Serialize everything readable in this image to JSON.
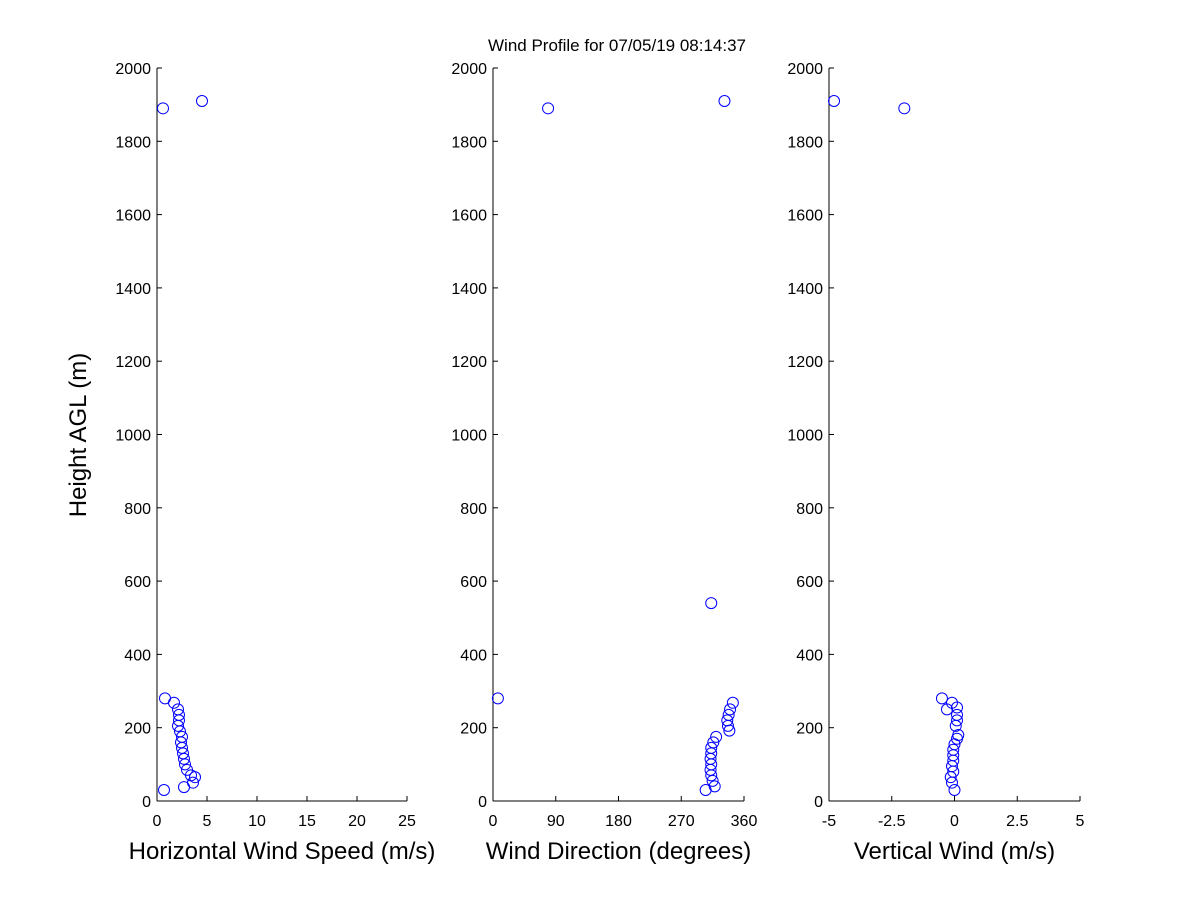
{
  "title": "Wind Profile for  07/05/19 08:14:37",
  "ylabel": "Height AGL (m)",
  "colors": {
    "marker": "#0000ff",
    "axis": "#000000",
    "background": "#ffffff"
  },
  "chart_data": [
    {
      "type": "scatter",
      "xlabel": "Horizontal Wind Speed (m/s)",
      "xlim": [
        0,
        25
      ],
      "xticks": [
        0,
        5,
        10,
        15,
        20,
        25
      ],
      "xtick_labels": [
        "0",
        "5",
        "10",
        "15",
        "20",
        "25"
      ],
      "ylim": [
        0,
        2000
      ],
      "yticks": [
        0,
        200,
        400,
        600,
        800,
        1000,
        1200,
        1400,
        1600,
        1800,
        2000
      ],
      "ytick_labels": [
        "0",
        "200",
        "400",
        "600",
        "800",
        "1000",
        "1200",
        "1400",
        "1600",
        "1800",
        "2000"
      ],
      "grid": false,
      "points": [
        {
          "x": 0.6,
          "y": 1890
        },
        {
          "x": 4.5,
          "y": 1910
        },
        {
          "x": 0.8,
          "y": 280
        },
        {
          "x": 1.7,
          "y": 268
        },
        {
          "x": 2.1,
          "y": 250
        },
        {
          "x": 2.2,
          "y": 235
        },
        {
          "x": 2.2,
          "y": 220
        },
        {
          "x": 2.1,
          "y": 205
        },
        {
          "x": 2.3,
          "y": 190
        },
        {
          "x": 2.5,
          "y": 175
        },
        {
          "x": 2.4,
          "y": 160
        },
        {
          "x": 2.5,
          "y": 145
        },
        {
          "x": 2.6,
          "y": 130
        },
        {
          "x": 2.7,
          "y": 115
        },
        {
          "x": 2.8,
          "y": 100
        },
        {
          "x": 3.0,
          "y": 85
        },
        {
          "x": 3.4,
          "y": 70
        },
        {
          "x": 3.8,
          "y": 65
        },
        {
          "x": 3.6,
          "y": 50
        },
        {
          "x": 2.7,
          "y": 38
        },
        {
          "x": 0.7,
          "y": 30
        }
      ]
    },
    {
      "type": "scatter",
      "xlabel": "Wind Direction (degrees)",
      "xlim": [
        0,
        360
      ],
      "xticks": [
        0,
        90,
        180,
        270,
        360
      ],
      "xtick_labels": [
        "0",
        "90",
        "180",
        "270",
        "360"
      ],
      "ylim": [
        0,
        2000
      ],
      "yticks": [
        0,
        200,
        400,
        600,
        800,
        1000,
        1200,
        1400,
        1600,
        1800,
        2000
      ],
      "ytick_labels": [
        "0",
        "200",
        "400",
        "600",
        "800",
        "1000",
        "1200",
        "1400",
        "1600",
        "1800",
        "2000"
      ],
      "grid": false,
      "points": [
        {
          "x": 79,
          "y": 1890
        },
        {
          "x": 332,
          "y": 1910
        },
        {
          "x": 313,
          "y": 540
        },
        {
          "x": 7,
          "y": 280
        },
        {
          "x": 344,
          "y": 268
        },
        {
          "x": 340,
          "y": 250
        },
        {
          "x": 338,
          "y": 235
        },
        {
          "x": 336,
          "y": 220
        },
        {
          "x": 337,
          "y": 205
        },
        {
          "x": 339,
          "y": 192
        },
        {
          "x": 320,
          "y": 175
        },
        {
          "x": 316,
          "y": 160
        },
        {
          "x": 313,
          "y": 145
        },
        {
          "x": 313,
          "y": 130
        },
        {
          "x": 312,
          "y": 115
        },
        {
          "x": 313,
          "y": 100
        },
        {
          "x": 312,
          "y": 85
        },
        {
          "x": 313,
          "y": 70
        },
        {
          "x": 315,
          "y": 55
        },
        {
          "x": 318,
          "y": 40
        },
        {
          "x": 305,
          "y": 30
        }
      ]
    },
    {
      "type": "scatter",
      "xlabel": "Vertical Wind (m/s)",
      "xlim": [
        -5,
        5
      ],
      "xticks": [
        -5,
        -2.5,
        0,
        2.5,
        5
      ],
      "xtick_labels": [
        "-5",
        "-2.5",
        "0",
        "2.5",
        "5"
      ],
      "ylim": [
        0,
        2000
      ],
      "yticks": [
        0,
        200,
        400,
        600,
        800,
        1000,
        1200,
        1400,
        1600,
        1800,
        2000
      ],
      "ytick_labels": [
        "0",
        "200",
        "400",
        "600",
        "800",
        "1000",
        "1200",
        "1400",
        "1600",
        "1800",
        "2000"
      ],
      "grid": false,
      "points": [
        {
          "x": -4.8,
          "y": 1910
        },
        {
          "x": -2.0,
          "y": 1890
        },
        {
          "x": -0.5,
          "y": 280
        },
        {
          "x": -0.1,
          "y": 268
        },
        {
          "x": -0.3,
          "y": 250
        },
        {
          "x": 0.1,
          "y": 255
        },
        {
          "x": 0.1,
          "y": 235
        },
        {
          "x": 0.1,
          "y": 220
        },
        {
          "x": 0.05,
          "y": 205
        },
        {
          "x": 0.15,
          "y": 180
        },
        {
          "x": 0.1,
          "y": 170
        },
        {
          "x": 0.0,
          "y": 155
        },
        {
          "x": -0.05,
          "y": 140
        },
        {
          "x": -0.05,
          "y": 125
        },
        {
          "x": -0.05,
          "y": 110
        },
        {
          "x": -0.1,
          "y": 95
        },
        {
          "x": -0.05,
          "y": 80
        },
        {
          "x": -0.15,
          "y": 65
        },
        {
          "x": -0.1,
          "y": 50
        },
        {
          "x": 0.0,
          "y": 30
        }
      ]
    }
  ]
}
